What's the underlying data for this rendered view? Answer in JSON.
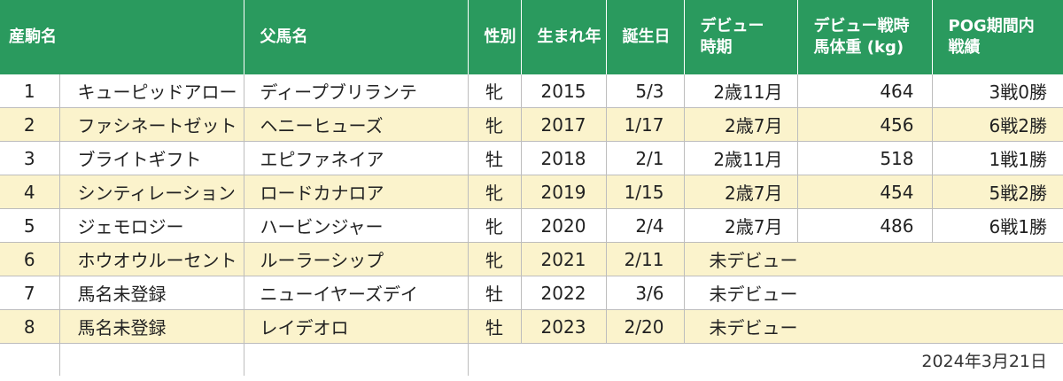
{
  "headers": {
    "foal_name": "産駒名",
    "sire_name": "父馬名",
    "sex": "性別",
    "birth_year": "生まれ年",
    "birthday": "誕生日",
    "debut_period_l1": "デビュー",
    "debut_period_l2": "時期",
    "debut_weight_l1": "デビュー戦時",
    "debut_weight_l2": "馬体重 (kg)",
    "pog_record_l1": "POG期間内",
    "pog_record_l2": "戦績"
  },
  "rows": [
    {
      "no": "1",
      "name": "キューピッドアロー",
      "sire": "ディープブリランテ",
      "sex": "牝",
      "year": "2015",
      "birthday": "5/3",
      "debut_period": "2歳11月",
      "debut_weight": "464",
      "record": "3戦0勝"
    },
    {
      "no": "2",
      "name": "ファシネートゼット",
      "sire": "ヘニーヒューズ",
      "sex": "牝",
      "year": "2017",
      "birthday": "1/17",
      "debut_period": "2歳7月",
      "debut_weight": "456",
      "record": "6戦2勝"
    },
    {
      "no": "3",
      "name": "ブライトギフト",
      "sire": "エピファネイア",
      "sex": "牡",
      "year": "2018",
      "birthday": "2/1",
      "debut_period": "2歳11月",
      "debut_weight": "518",
      "record": "1戦1勝"
    },
    {
      "no": "4",
      "name": "シンティレーション",
      "sire": "ロードカナロア",
      "sex": "牝",
      "year": "2019",
      "birthday": "1/15",
      "debut_period": "2歳7月",
      "debut_weight": "454",
      "record": "5戦2勝"
    },
    {
      "no": "5",
      "name": "ジェモロジー",
      "sire": "ハービンジャー",
      "sex": "牝",
      "year": "2020",
      "birthday": "2/4",
      "debut_period": "2歳7月",
      "debut_weight": "486",
      "record": "6戦1勝"
    },
    {
      "no": "6",
      "name": "ホウオウルーセント",
      "sire": "ルーラーシップ",
      "sex": "牝",
      "year": "2021",
      "birthday": "2/11",
      "status": "未デビュー"
    },
    {
      "no": "7",
      "name": "馬名未登録",
      "sire": "ニューイヤーズデイ",
      "sex": "牡",
      "year": "2022",
      "birthday": "3/6",
      "status": "未デビュー"
    },
    {
      "no": "8",
      "name": "馬名未登録",
      "sire": "レイデオロ",
      "sex": "牡",
      "year": "2023",
      "birthday": "2/20",
      "status": "未デビュー"
    }
  ],
  "footer": {
    "date": "2024年3月21日"
  }
}
